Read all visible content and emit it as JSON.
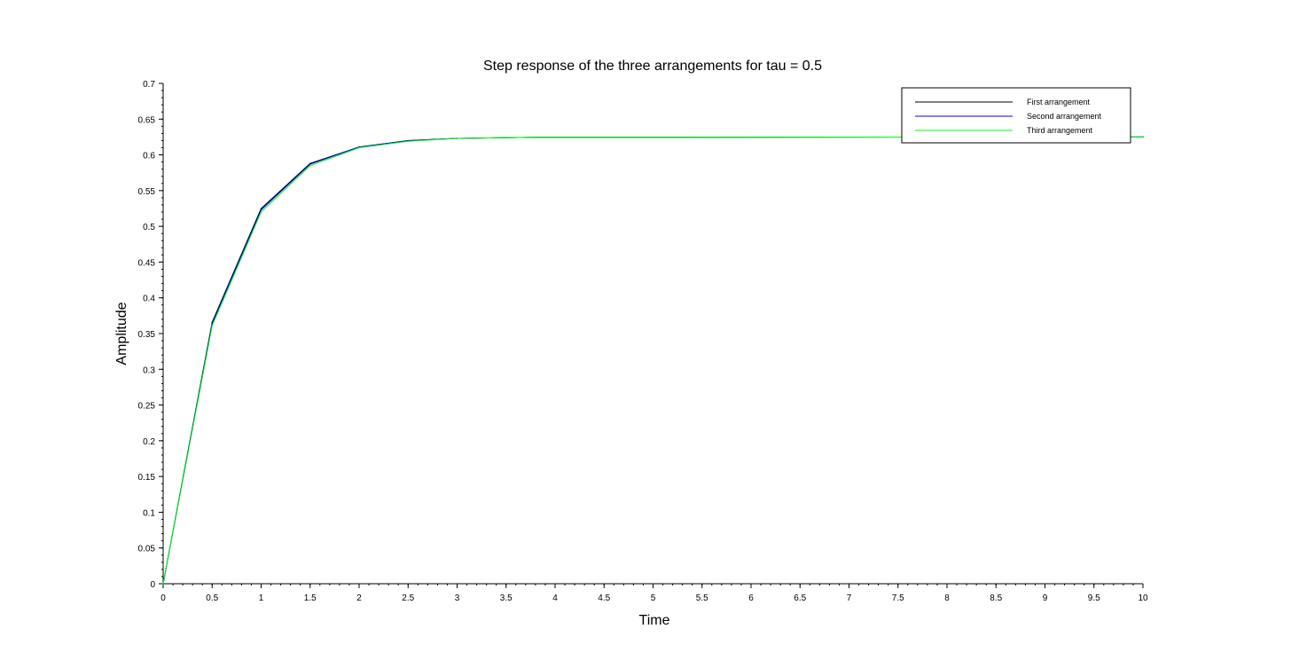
{
  "chart_data": {
    "type": "line",
    "title": "Step response of the three arrangements for tau = 0.5",
    "xlabel": "Time",
    "ylabel": "Amplitude",
    "xlim": [
      0,
      10
    ],
    "ylim": [
      0,
      0.7
    ],
    "x_ticks": [
      "0",
      "0.5",
      "1",
      "1.5",
      "2",
      "2.5",
      "3",
      "3.5",
      "4",
      "4.5",
      "5",
      "5.5",
      "6",
      "6.5",
      "7",
      "7.5",
      "8",
      "8.5",
      "9",
      "9.5",
      "10"
    ],
    "y_ticks": [
      "0",
      "0.05",
      "0.1",
      "0.15",
      "0.2",
      "0.25",
      "0.3",
      "0.35",
      "0.4",
      "0.45",
      "0.5",
      "0.55",
      "0.6",
      "0.65",
      "0.7"
    ],
    "grid": false,
    "legend_position": "top-right",
    "series": [
      {
        "name": "First arrangement",
        "color": "#000000",
        "x": [
          0,
          0.5,
          1,
          1.5,
          2,
          2.5,
          3,
          3.8,
          10
        ],
        "y": [
          0,
          0.366,
          0.525,
          0.588,
          0.611,
          0.62,
          0.623,
          0.6245,
          0.625
        ]
      },
      {
        "name": "Second arrangement",
        "color": "#0000ff",
        "x": [
          0,
          0.5,
          1,
          1.5,
          2,
          2.5,
          3,
          3.8,
          10
        ],
        "y": [
          0,
          0.364,
          0.523,
          0.587,
          0.611,
          0.62,
          0.623,
          0.6245,
          0.625
        ]
      },
      {
        "name": "Third arrangement",
        "color": "#00ff00",
        "x": [
          0,
          0.5,
          1,
          1.5,
          2,
          2.5,
          3,
          3.8,
          10
        ],
        "y": [
          0,
          0.361,
          0.52,
          0.585,
          0.61,
          0.619,
          0.623,
          0.6245,
          0.625
        ]
      }
    ]
  }
}
